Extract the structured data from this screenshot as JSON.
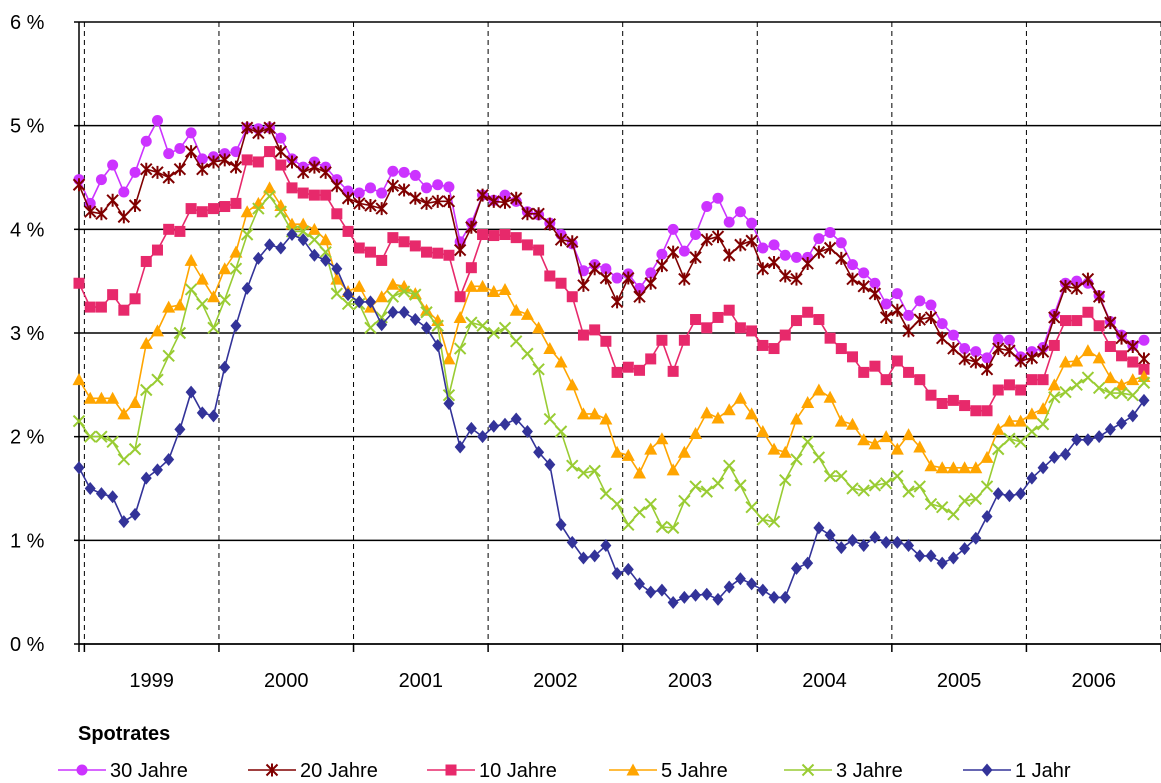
{
  "chart_data": {
    "type": "line",
    "title": "",
    "xlabel": "",
    "ylabel": "",
    "ylim": [
      0,
      6
    ],
    "grid": {
      "horizontal": "solid",
      "vertical": "dashed"
    },
    "legend_placement": "bottom",
    "legend_title": "Spotrates",
    "y_ticks": [
      "0 %",
      "1 %",
      "2 %",
      "3 %",
      "4 %",
      "5 %",
      "6 %"
    ],
    "x_tick_labels": [
      "1999",
      "2000",
      "2001",
      "2002",
      "2003",
      "2004",
      "2005",
      "2006"
    ],
    "x_range": [
      1998.96,
      2007.0
    ],
    "x_start": 1998.96,
    "x_step": 0.0833,
    "series": [
      {
        "name": "30 Jahre",
        "color": "#cc33ff",
        "marker": "circle",
        "values": [
          4.48,
          4.25,
          4.48,
          4.62,
          4.36,
          4.55,
          4.85,
          5.05,
          4.73,
          4.78,
          4.93,
          4.68,
          4.7,
          4.73,
          4.75,
          4.98,
          4.97,
          4.98,
          4.88,
          4.68,
          4.6,
          4.65,
          4.6,
          4.48,
          4.37,
          4.35,
          4.4,
          4.35,
          4.56,
          4.55,
          4.52,
          4.4,
          4.43,
          4.41,
          3.88,
          4.06,
          4.33,
          4.28,
          4.33,
          4.27,
          4.17,
          4.14,
          4.06,
          3.95,
          3.86,
          3.6,
          3.66,
          3.62,
          3.53,
          3.57,
          3.43,
          3.58,
          3.76,
          4.0,
          3.79,
          3.95,
          4.22,
          4.3,
          4.07,
          4.17,
          4.06,
          3.82,
          3.85,
          3.75,
          3.73,
          3.73,
          3.91,
          3.97,
          3.87,
          3.66,
          3.58,
          3.48,
          3.28,
          3.38,
          3.17,
          3.31,
          3.27,
          3.09,
          2.98,
          2.85,
          2.82,
          2.76,
          2.94,
          2.93,
          2.77,
          2.82,
          2.86,
          3.18,
          3.48,
          3.5,
          3.48,
          3.36,
          3.11,
          2.98,
          2.88,
          2.93
        ]
      },
      {
        "name": "20 Jahre",
        "color": "#800000",
        "marker": "star",
        "values": [
          4.43,
          4.17,
          4.15,
          4.28,
          4.12,
          4.23,
          4.58,
          4.55,
          4.5,
          4.58,
          4.75,
          4.58,
          4.65,
          4.67,
          4.6,
          4.98,
          4.93,
          4.98,
          4.75,
          4.65,
          4.55,
          4.6,
          4.55,
          4.42,
          4.3,
          4.25,
          4.23,
          4.2,
          4.42,
          4.38,
          4.3,
          4.25,
          4.27,
          4.27,
          3.8,
          4.02,
          4.33,
          4.27,
          4.26,
          4.3,
          4.15,
          4.15,
          4.05,
          3.9,
          3.88,
          3.46,
          3.62,
          3.53,
          3.3,
          3.53,
          3.35,
          3.48,
          3.65,
          3.78,
          3.52,
          3.73,
          3.9,
          3.93,
          3.75,
          3.85,
          3.89,
          3.62,
          3.68,
          3.55,
          3.52,
          3.67,
          3.78,
          3.82,
          3.72,
          3.52,
          3.45,
          3.38,
          3.15,
          3.22,
          3.02,
          3.13,
          3.15,
          2.95,
          2.85,
          2.75,
          2.72,
          2.65,
          2.85,
          2.83,
          2.73,
          2.76,
          2.82,
          3.15,
          3.45,
          3.43,
          3.52,
          3.35,
          3.1,
          2.95,
          2.87,
          2.75
        ]
      },
      {
        "name": "10 Jahre",
        "color": "#e7296b",
        "marker": "square",
        "values": [
          3.48,
          3.25,
          3.25,
          3.37,
          3.22,
          3.33,
          3.69,
          3.8,
          4.0,
          3.98,
          4.2,
          4.17,
          4.2,
          4.22,
          4.25,
          4.67,
          4.65,
          4.75,
          4.62,
          4.4,
          4.35,
          4.33,
          4.33,
          4.15,
          3.98,
          3.82,
          3.78,
          3.7,
          3.92,
          3.88,
          3.84,
          3.78,
          3.77,
          3.75,
          3.35,
          3.63,
          3.95,
          3.94,
          3.95,
          3.92,
          3.85,
          3.8,
          3.55,
          3.48,
          3.35,
          2.98,
          3.03,
          2.92,
          2.62,
          2.67,
          2.64,
          2.75,
          2.93,
          2.63,
          2.93,
          3.13,
          3.05,
          3.15,
          3.22,
          3.05,
          3.02,
          2.88,
          2.85,
          2.98,
          3.12,
          3.2,
          3.13,
          2.95,
          2.85,
          2.77,
          2.62,
          2.68,
          2.55,
          2.73,
          2.62,
          2.55,
          2.4,
          2.32,
          2.35,
          2.3,
          2.25,
          2.25,
          2.45,
          2.5,
          2.45,
          2.55,
          2.55,
          2.88,
          3.12,
          3.12,
          3.2,
          3.07,
          2.87,
          2.78,
          2.72,
          2.65
        ]
      },
      {
        "name": "5 Jahre",
        "color": "#ffa500",
        "marker": "triangle",
        "values": [
          2.55,
          2.37,
          2.37,
          2.37,
          2.22,
          2.33,
          2.9,
          3.02,
          3.25,
          3.27,
          3.7,
          3.52,
          3.35,
          3.62,
          3.78,
          4.17,
          4.25,
          4.4,
          4.23,
          4.05,
          4.05,
          4.0,
          3.9,
          3.52,
          3.4,
          3.45,
          3.25,
          3.35,
          3.47,
          3.45,
          3.38,
          3.22,
          3.12,
          2.75,
          3.15,
          3.45,
          3.45,
          3.4,
          3.42,
          3.22,
          3.18,
          3.05,
          2.85,
          2.72,
          2.5,
          2.22,
          2.22,
          2.17,
          1.85,
          1.82,
          1.65,
          1.88,
          1.98,
          1.68,
          1.85,
          2.03,
          2.23,
          2.18,
          2.26,
          2.37,
          2.22,
          2.05,
          1.88,
          1.85,
          2.17,
          2.33,
          2.45,
          2.38,
          2.15,
          2.12,
          1.97,
          1.93,
          2.0,
          1.88,
          2.02,
          1.9,
          1.72,
          1.7,
          1.7,
          1.7,
          1.7,
          1.8,
          2.07,
          2.15,
          2.15,
          2.22,
          2.27,
          2.5,
          2.72,
          2.73,
          2.83,
          2.76,
          2.57,
          2.5,
          2.55,
          2.58
        ]
      },
      {
        "name": "3 Jahre",
        "color": "#99cc33",
        "marker": "x",
        "values": [
          2.15,
          2.0,
          2.0,
          1.95,
          1.78,
          1.88,
          2.45,
          2.55,
          2.78,
          3.0,
          3.42,
          3.28,
          3.05,
          3.32,
          3.62,
          3.95,
          4.2,
          4.32,
          4.17,
          3.98,
          3.98,
          3.9,
          3.78,
          3.38,
          3.28,
          3.28,
          3.05,
          3.15,
          3.35,
          3.4,
          3.37,
          3.2,
          3.07,
          2.4,
          2.85,
          3.1,
          3.07,
          3.0,
          3.05,
          2.92,
          2.8,
          2.65,
          2.17,
          2.05,
          1.72,
          1.65,
          1.67,
          1.45,
          1.35,
          1.15,
          1.27,
          1.35,
          1.13,
          1.12,
          1.38,
          1.52,
          1.47,
          1.55,
          1.72,
          1.53,
          1.32,
          1.2,
          1.18,
          1.58,
          1.78,
          1.95,
          1.8,
          1.62,
          1.62,
          1.5,
          1.48,
          1.53,
          1.55,
          1.62,
          1.47,
          1.52,
          1.35,
          1.32,
          1.25,
          1.38,
          1.4,
          1.52,
          1.88,
          1.98,
          1.95,
          2.05,
          2.12,
          2.38,
          2.43,
          2.5,
          2.57,
          2.47,
          2.42,
          2.42,
          2.4,
          2.52
        ]
      },
      {
        "name": "1 Jahr",
        "color": "#333399",
        "marker": "diamond",
        "values": [
          1.7,
          1.5,
          1.45,
          1.42,
          1.18,
          1.25,
          1.6,
          1.68,
          1.78,
          2.07,
          2.43,
          2.23,
          2.2,
          2.67,
          3.07,
          3.43,
          3.72,
          3.85,
          3.82,
          3.95,
          3.9,
          3.75,
          3.7,
          3.62,
          3.37,
          3.3,
          3.3,
          3.08,
          3.2,
          3.2,
          3.13,
          3.05,
          2.88,
          2.32,
          1.9,
          2.08,
          2.0,
          2.1,
          2.12,
          2.17,
          2.05,
          1.85,
          1.73,
          1.15,
          0.98,
          0.83,
          0.85,
          0.95,
          0.68,
          0.72,
          0.58,
          0.5,
          0.52,
          0.4,
          0.45,
          0.47,
          0.48,
          0.43,
          0.55,
          0.63,
          0.58,
          0.52,
          0.45,
          0.45,
          0.73,
          0.78,
          1.12,
          1.05,
          0.93,
          1.0,
          0.95,
          1.03,
          0.98,
          0.98,
          0.95,
          0.85,
          0.85,
          0.78,
          0.83,
          0.92,
          1.02,
          1.23,
          1.45,
          1.43,
          1.45,
          1.6,
          1.7,
          1.8,
          1.83,
          1.97,
          1.97,
          2.0,
          2.07,
          2.13,
          2.2,
          2.35
        ]
      }
    ]
  }
}
